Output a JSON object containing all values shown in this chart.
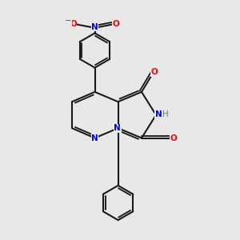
{
  "bg_color": "#e8e8e8",
  "bond_color": "#1a1a1a",
  "N_color": "#0000ff",
  "O_color": "#ff0000",
  "NH_color": "#4a8a8a",
  "lw": 1.5,
  "lw_double_inner": 1.3,
  "fig_size": [
    3.0,
    3.0
  ],
  "dpi": 100,
  "xlim": [
    0.0,
    1.0
  ],
  "ylim": [
    0.0,
    1.0
  ]
}
